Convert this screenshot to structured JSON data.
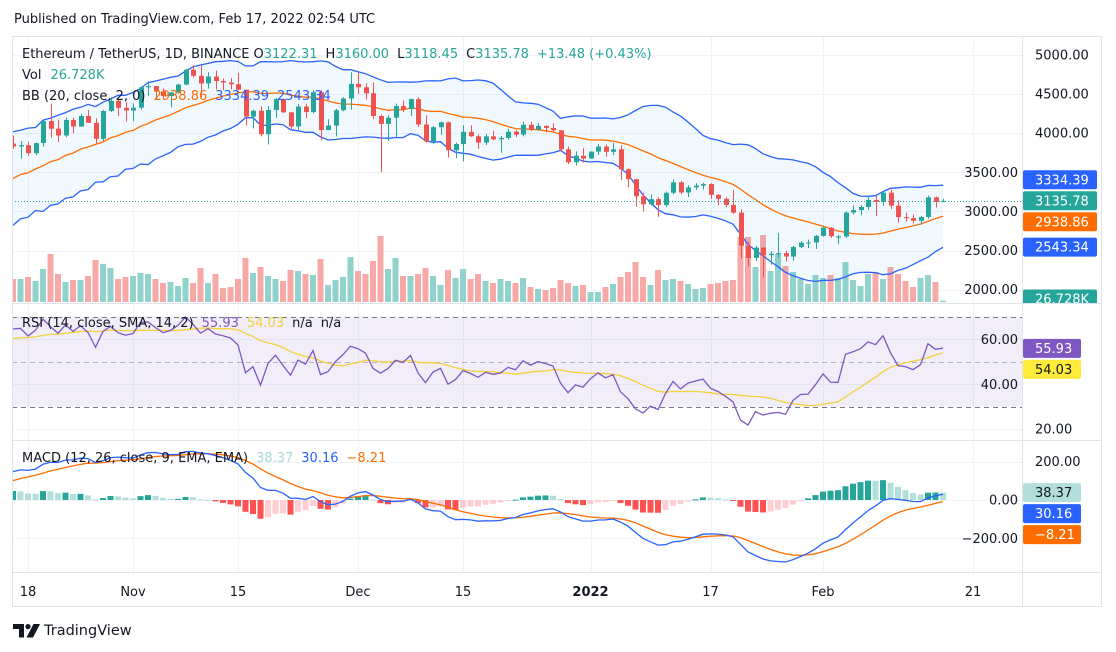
{
  "header": {
    "published": "Published on TradingView.com, Feb 17, 2022 02:54 UTC"
  },
  "legend": {
    "symbol": "Ethereum / TetherUS, 1D, BINANCE",
    "ohlc": [
      {
        "k": "O",
        "v": "3122.31"
      },
      {
        "k": "H",
        "v": "3160.00"
      },
      {
        "k": "L",
        "v": "3118.45"
      },
      {
        "k": "C",
        "v": "3135.78"
      }
    ],
    "change": "+13.48 (+0.43%)",
    "vol_label": "Vol",
    "vol_value": "26.728K",
    "bb_label": "BB (20, close, 2, 0)",
    "bb_values": [
      "2938.86",
      "3334.39",
      "2543.34"
    ],
    "rsi_label": "RSI (14, close, SMA, 14, 2)",
    "rsi_values": [
      "55.93",
      "54.03",
      "n/a",
      "n/a"
    ],
    "macd_label": "MACD (12, 26, close, 9, EMA, EMA)",
    "macd_values": [
      "38.37",
      "30.16",
      "−8.21"
    ]
  },
  "footer": {
    "brand": "TradingView"
  },
  "colors": {
    "up": "#26a69a",
    "down": "#ef5350",
    "volume_up": "#92d2cc",
    "volume_down": "#f7a9a7",
    "bb_basis": "#ff6d00",
    "bb_band": "#2962ff",
    "bb_fill": "#2196f3",
    "rsi": "#7e57c2",
    "rsi_ma": "#f2d13a",
    "rsi_fill": "#7e57c2",
    "rsi_band": "#787b86",
    "macd": "#2962ff",
    "signal": "#ff6d00",
    "hist_grow_above": "#26a69a",
    "hist_fall_above": "#b2dfdb",
    "hist_grow_below": "#ffcdd2",
    "hist_fall_below": "#ff5252",
    "grid": "#f0f3fa",
    "border": "#e0e3eb",
    "text": "#131722"
  },
  "chart_data": {
    "type": "candlestick",
    "title": "Ethereum / TetherUS, 1D, BINANCE",
    "candle_fields": [
      "date",
      "open",
      "high",
      "low",
      "close",
      "volume_k"
    ],
    "candles": [
      [
        "2021-10-16",
        3868,
        3971,
        3800,
        3830,
        437
      ],
      [
        "2021-10-17",
        3830,
        3900,
        3674,
        3847,
        437
      ],
      [
        "2021-10-18",
        3847,
        3893,
        3712,
        3745,
        475
      ],
      [
        "2021-10-19",
        3745,
        3880,
        3720,
        3874,
        399
      ],
      [
        "2021-10-20",
        3874,
        4165,
        3827,
        4155,
        627
      ],
      [
        "2021-10-21",
        4155,
        4376,
        3944,
        4058,
        912
      ],
      [
        "2021-10-22",
        4058,
        4173,
        3890,
        3971,
        532
      ],
      [
        "2021-10-23",
        3971,
        4200,
        3950,
        4170,
        380
      ],
      [
        "2021-10-24",
        4170,
        4200,
        4000,
        4085,
        418
      ],
      [
        "2021-10-25",
        4085,
        4250,
        4080,
        4220,
        418
      ],
      [
        "2021-10-26",
        4220,
        4295,
        4130,
        4133,
        494
      ],
      [
        "2021-10-27",
        4133,
        4190,
        3870,
        3928,
        798
      ],
      [
        "2021-10-28",
        3928,
        4300,
        3900,
        4284,
        722
      ],
      [
        "2021-10-29",
        4284,
        4460,
        4271,
        4414,
        646
      ],
      [
        "2021-10-30",
        4414,
        4432,
        4220,
        4325,
        437
      ],
      [
        "2021-10-31",
        4325,
        4398,
        4150,
        4290,
        475
      ],
      [
        "2021-11-01",
        4290,
        4380,
        4155,
        4326,
        494
      ],
      [
        "2021-11-02",
        4326,
        4600,
        4300,
        4587,
        551
      ],
      [
        "2021-11-03",
        4587,
        4666,
        4477,
        4603,
        532
      ],
      [
        "2021-11-04",
        4603,
        4604,
        4430,
        4535,
        437
      ],
      [
        "2021-11-05",
        4535,
        4572,
        4440,
        4475,
        361
      ],
      [
        "2021-11-06",
        4475,
        4525,
        4330,
        4520,
        380
      ],
      [
        "2021-11-07",
        4520,
        4634,
        4507,
        4622,
        304
      ],
      [
        "2021-11-08",
        4622,
        4825,
        4612,
        4812,
        456
      ],
      [
        "2021-11-09",
        4812,
        4868,
        4712,
        4734,
        361
      ],
      [
        "2021-11-10",
        4734,
        4868,
        4460,
        4636,
        646
      ],
      [
        "2021-11-11",
        4636,
        4780,
        4570,
        4725,
        361
      ],
      [
        "2021-11-12",
        4725,
        4800,
        4561,
        4667,
        532
      ],
      [
        "2021-11-13",
        4667,
        4700,
        4550,
        4648,
        266
      ],
      [
        "2021-11-14",
        4648,
        4706,
        4560,
        4626,
        285
      ],
      [
        "2021-11-15",
        4626,
        4772,
        4550,
        4556,
        437
      ],
      [
        "2021-11-16",
        4556,
        4558,
        4100,
        4213,
        836
      ],
      [
        "2021-11-17",
        4213,
        4300,
        4060,
        4288,
        551
      ],
      [
        "2021-11-18",
        4288,
        4343,
        3960,
        3986,
        665
      ],
      [
        "2021-11-19",
        3986,
        4345,
        3855,
        4297,
        494
      ],
      [
        "2021-11-20",
        4297,
        4450,
        4197,
        4437,
        437
      ],
      [
        "2021-11-21",
        4437,
        4440,
        4260,
        4267,
        399
      ],
      [
        "2021-11-22",
        4267,
        4275,
        4050,
        4087,
        608
      ],
      [
        "2021-11-23",
        4087,
        4375,
        4045,
        4341,
        589
      ],
      [
        "2021-11-24",
        4341,
        4375,
        4195,
        4270,
        532
      ],
      [
        "2021-11-25",
        4270,
        4550,
        4250,
        4524,
        513
      ],
      [
        "2021-11-26",
        4524,
        4550,
        3913,
        4041,
        817
      ],
      [
        "2021-11-27",
        4041,
        4180,
        4038,
        4098,
        323
      ],
      [
        "2021-11-28",
        4098,
        4310,
        3960,
        4294,
        418
      ],
      [
        "2021-11-29",
        4294,
        4460,
        4280,
        4444,
        475
      ],
      [
        "2021-11-30",
        4444,
        4780,
        4300,
        4631,
        855
      ],
      [
        "2021-12-01",
        4631,
        4778,
        4501,
        4587,
        589
      ],
      [
        "2021-12-02",
        4587,
        4640,
        4431,
        4511,
        532
      ],
      [
        "2021-12-03",
        4511,
        4650,
        4180,
        4220,
        779
      ],
      [
        "2021-12-04",
        4220,
        4240,
        3500,
        4119,
        1254
      ],
      [
        "2021-12-05",
        4119,
        4230,
        3900,
        4198,
        627
      ],
      [
        "2021-12-06",
        4198,
        4380,
        3950,
        4348,
        836
      ],
      [
        "2021-12-07",
        4348,
        4420,
        4270,
        4309,
        494
      ],
      [
        "2021-12-08",
        4309,
        4444,
        4220,
        4436,
        494
      ],
      [
        "2021-12-09",
        4436,
        4460,
        4080,
        4111,
        532
      ],
      [
        "2021-12-10",
        4111,
        4230,
        3880,
        3895,
        646
      ],
      [
        "2021-12-11",
        3895,
        4090,
        3860,
        4077,
        494
      ],
      [
        "2021-12-12",
        4077,
        4150,
        3980,
        4140,
        323
      ],
      [
        "2021-12-13",
        4140,
        4150,
        3690,
        3783,
        608
      ],
      [
        "2021-12-14",
        3783,
        3880,
        3680,
        3862,
        456
      ],
      [
        "2021-12-15",
        3862,
        4100,
        3640,
        4018,
        627
      ],
      [
        "2021-12-16",
        4018,
        4100,
        3950,
        3961,
        437
      ],
      [
        "2021-12-17",
        3961,
        3985,
        3800,
        3880,
        532
      ],
      [
        "2021-12-18",
        3880,
        3990,
        3850,
        3960,
        399
      ],
      [
        "2021-12-19",
        3960,
        4030,
        3910,
        3922,
        361
      ],
      [
        "2021-12-20",
        3922,
        3965,
        3750,
        3940,
        437
      ],
      [
        "2021-12-21",
        3940,
        4055,
        3915,
        4020,
        399
      ],
      [
        "2021-12-22",
        4020,
        4040,
        3950,
        3982,
        361
      ],
      [
        "2021-12-23",
        3982,
        4145,
        3960,
        4108,
        456
      ],
      [
        "2021-12-24",
        4108,
        4145,
        4030,
        4047,
        285
      ],
      [
        "2021-12-25",
        4047,
        4130,
        4030,
        4093,
        247
      ],
      [
        "2021-12-26",
        4093,
        4100,
        4010,
        4067,
        228
      ],
      [
        "2021-12-27",
        4067,
        4126,
        4025,
        4037,
        266
      ],
      [
        "2021-12-28",
        4037,
        4040,
        3760,
        3794,
        418
      ],
      [
        "2021-12-29",
        3794,
        3830,
        3604,
        3628,
        361
      ],
      [
        "2021-12-30",
        3628,
        3767,
        3585,
        3713,
        304
      ],
      [
        "2021-12-31",
        3713,
        3810,
        3622,
        3676,
        323
      ],
      [
        "2022-01-01",
        3676,
        3770,
        3675,
        3765,
        190
      ],
      [
        "2022-01-02",
        3765,
        3860,
        3722,
        3829,
        190
      ],
      [
        "2022-01-03",
        3829,
        3855,
        3700,
        3762,
        285
      ],
      [
        "2022-01-04",
        3762,
        3877,
        3720,
        3794,
        342
      ],
      [
        "2022-01-05",
        3794,
        3845,
        3400,
        3539,
        475
      ],
      [
        "2022-01-06",
        3539,
        3550,
        3310,
        3412,
        570
      ],
      [
        "2022-01-07",
        3412,
        3420,
        3060,
        3193,
        760
      ],
      [
        "2022-01-08",
        3193,
        3240,
        3000,
        3092,
        475
      ],
      [
        "2022-01-09",
        3092,
        3220,
        3075,
        3157,
        323
      ],
      [
        "2022-01-10",
        3157,
        3180,
        2930,
        3081,
        608
      ],
      [
        "2022-01-11",
        3081,
        3255,
        3055,
        3238,
        418
      ],
      [
        "2022-01-12",
        3238,
        3412,
        3220,
        3372,
        437
      ],
      [
        "2022-01-13",
        3372,
        3390,
        3220,
        3242,
        399
      ],
      [
        "2022-01-14",
        3242,
        3335,
        3185,
        3307,
        342
      ],
      [
        "2022-01-15",
        3307,
        3362,
        3275,
        3330,
        247
      ],
      [
        "2022-01-16",
        3330,
        3368,
        3280,
        3350,
        266
      ],
      [
        "2022-01-17",
        3350,
        3360,
        3160,
        3212,
        342
      ],
      [
        "2022-01-18",
        3212,
        3220,
        3080,
        3161,
        361
      ],
      [
        "2022-01-19",
        3161,
        3180,
        3053,
        3083,
        399
      ],
      [
        "2022-01-20",
        3083,
        3275,
        2970,
        2985,
        418
      ],
      [
        "2022-01-21",
        2985,
        3030,
        2400,
        2562,
        1235
      ],
      [
        "2022-01-22",
        2562,
        2615,
        2300,
        2404,
        1235
      ],
      [
        "2022-01-23",
        2404,
        2560,
        2366,
        2537,
        665
      ],
      [
        "2022-01-24",
        2537,
        2545,
        2160,
        2441,
        1273
      ],
      [
        "2022-01-25",
        2441,
        2490,
        2320,
        2458,
        589
      ],
      [
        "2022-01-26",
        2458,
        2725,
        2410,
        2466,
        912
      ],
      [
        "2022-01-27",
        2466,
        2497,
        2360,
        2423,
        684
      ],
      [
        "2022-01-28",
        2423,
        2560,
        2371,
        2545,
        570
      ],
      [
        "2022-01-29",
        2545,
        2620,
        2530,
        2600,
        437
      ],
      [
        "2022-01-30",
        2600,
        2640,
        2530,
        2603,
        342
      ],
      [
        "2022-01-31",
        2603,
        2700,
        2520,
        2687,
        513
      ],
      [
        "2022-02-01",
        2687,
        2817,
        2680,
        2791,
        456
      ],
      [
        "2022-02-02",
        2791,
        2800,
        2660,
        2683,
        513
      ],
      [
        "2022-02-03",
        2665,
        2700,
        2580,
        2680,
        456
      ],
      [
        "2022-02-04",
        2680,
        3000,
        2660,
        2985,
        760
      ],
      [
        "2022-02-05",
        2985,
        3075,
        2960,
        3017,
        418
      ],
      [
        "2022-02-06",
        3017,
        3080,
        2950,
        3057,
        304
      ],
      [
        "2022-02-07",
        3057,
        3200,
        3020,
        3147,
        532
      ],
      [
        "2022-02-08",
        3147,
        3195,
        2940,
        3122,
        570
      ],
      [
        "2022-02-09",
        3122,
        3250,
        3070,
        3240,
        437
      ],
      [
        "2022-02-10",
        3240,
        3280,
        3030,
        3074,
        665
      ],
      [
        "2022-02-11",
        3074,
        3140,
        2860,
        2927,
        532
      ],
      [
        "2022-02-12",
        2927,
        2985,
        2870,
        2915,
        399
      ],
      [
        "2022-02-13",
        2915,
        2960,
        2850,
        2880,
        285
      ],
      [
        "2022-02-14",
        2880,
        2940,
        2830,
        2929,
        456
      ],
      [
        "2022-02-15",
        2929,
        3200,
        2905,
        3180,
        513
      ],
      [
        "2022-02-16",
        3180,
        3190,
        3050,
        3122,
        380
      ],
      [
        "2022-02-17",
        3122.31,
        3160.0,
        3118.45,
        3135.78,
        26.728
      ]
    ],
    "price_axis": {
      "ylim": [
        1829,
        5243
      ],
      "ticks": [
        2000,
        2500,
        3000,
        3500,
        4000,
        4500,
        5000
      ],
      "tick_labels": [
        "2000.00",
        "2500.00",
        "3000.00",
        "3500.00",
        "4000.00",
        "4500.00",
        "5000.00"
      ]
    },
    "x_axis": {
      "ticks": [
        {
          "date": "2021-10-18",
          "label": "18"
        },
        {
          "date": "2021-11-01",
          "label": "Nov"
        },
        {
          "date": "2021-11-15",
          "label": "15"
        },
        {
          "date": "2021-12-01",
          "label": "Dec"
        },
        {
          "date": "2021-12-15",
          "label": "15"
        },
        {
          "date": "2022-01-01",
          "label": "2022",
          "bold": true
        },
        {
          "date": "2022-01-17",
          "label": "17"
        },
        {
          "date": "2022-02-01",
          "label": "Feb"
        },
        {
          "date": "2022-02-21",
          "label": "21"
        }
      ]
    },
    "last_price": 3135.78,
    "grid": true,
    "bollinger": {
      "length": 20,
      "mult": 2,
      "basis": 2938.86,
      "upper": 3334.39,
      "lower": 2543.34,
      "start": {
        "basis": 3430
      }
    },
    "rsi": {
      "length": 14,
      "ma_length": 14,
      "value": 55.93,
      "ma": 54.03,
      "ylim": [
        15.2,
        75.7
      ],
      "bands": [
        70,
        50,
        30
      ],
      "ticks": [
        20,
        40,
        60
      ],
      "tick_labels": [
        "20.00",
        "40.00",
        "60.00"
      ],
      "start": {
        "rsi": 64.6,
        "ma": 60
      }
    },
    "macd": {
      "fast": 12,
      "slow": 26,
      "signal_length": 9,
      "histogram": 38.37,
      "macd": 30.16,
      "signal": -8.21,
      "ylim": [
        -376,
        308
      ],
      "ticks": [
        -200,
        0,
        200
      ],
      "tick_labels": [
        "−200.00",
        "0.00",
        "200.00"
      ],
      "start": {
        "macd": 148,
        "signal": 101
      }
    },
    "axis_badges": {
      "main": [
        {
          "series": "last-price",
          "value": 3135.78,
          "text": "3135.78",
          "bg": "#26a69a",
          "fg": "#ffffff"
        },
        {
          "series": "bb-upper",
          "value": 3334.39,
          "text": "3334.39",
          "bg": "#2962ff",
          "fg": "#ffffff"
        },
        {
          "series": "bb-basis",
          "value": 2938.86,
          "text": "2938.86",
          "bg": "#ff6d00",
          "fg": "#ffffff"
        },
        {
          "series": "bb-lower",
          "value": 2543.34,
          "text": "2543.34",
          "bg": "#2962ff",
          "fg": "#ffffff"
        }
      ],
      "volume": [
        {
          "series": "volume",
          "value": 26.728,
          "text": "26.728K",
          "bg": "#26a69a",
          "fg": "#ffffff"
        }
      ],
      "rsi": [
        {
          "series": "rsi",
          "value": 55.93,
          "text": "55.93",
          "bg": "#7e57c2",
          "fg": "#ffffff"
        },
        {
          "series": "rsi-ma",
          "value": 54.03,
          "text": "54.03",
          "bg": "#ffeb3b",
          "fg": "#131722"
        }
      ],
      "macd": [
        {
          "series": "histogram",
          "value": 38.37,
          "text": "38.37",
          "bg": "#b2dfdb",
          "fg": "#131722"
        },
        {
          "series": "macd",
          "value": 30.16,
          "text": "30.16",
          "bg": "#2962ff",
          "fg": "#ffffff"
        },
        {
          "series": "signal",
          "value": -8.21,
          "text": "−8.21",
          "bg": "#ff6d00",
          "fg": "#ffffff"
        }
      ]
    }
  }
}
